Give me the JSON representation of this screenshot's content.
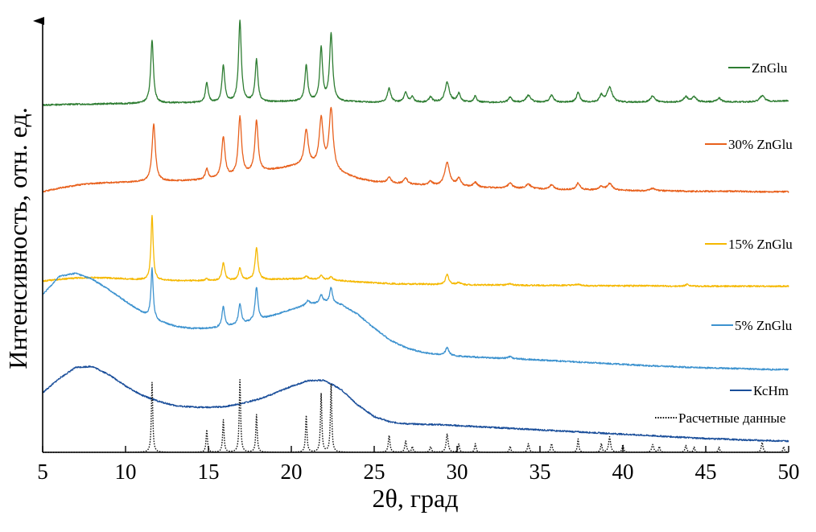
{
  "chart_data": {
    "type": "line",
    "xlabel": "2θ, град",
    "ylabel": "Интенсивность, отн. ед.",
    "xlim": [
      5,
      50
    ],
    "ylim": [
      0,
      100
    ],
    "xticks": [
      5,
      10,
      15,
      20,
      25,
      30,
      35,
      40,
      45,
      50
    ],
    "xtick_labels": [
      "5",
      "10",
      "15",
      "20",
      "25",
      "30",
      "35",
      "40",
      "45",
      "50"
    ],
    "yticks": [],
    "grid": false,
    "legend_position": "right",
    "x": [
      5,
      6,
      7,
      8,
      9,
      10,
      11,
      12,
      13,
      14,
      15,
      16,
      17,
      18,
      19,
      20,
      21,
      22,
      23,
      24,
      25,
      26,
      27,
      28,
      29,
      30,
      31,
      32,
      33,
      34,
      35,
      36,
      37,
      38,
      39,
      40,
      41,
      42,
      43,
      44,
      45,
      46,
      47,
      48,
      49,
      50
    ],
    "series": [
      {
        "name": "ZnGlu",
        "color": "#2e7d32",
        "style": "solid",
        "baseline": [
          80.5,
          80.6,
          80.7,
          80.7,
          80.8,
          80.8,
          80.9,
          80.9,
          81,
          81,
          81,
          81,
          81.1,
          81.1,
          81.2,
          81.3,
          81.3,
          81.3,
          81.2,
          81.2,
          81.1,
          81.1,
          81.1,
          81.1,
          81.1,
          81.1,
          81.1,
          81.1,
          81.1,
          81.1,
          81.1,
          81.1,
          81.1,
          81.1,
          81.1,
          81.1,
          81.1,
          81.1,
          81.1,
          81.2,
          81.2,
          81.2,
          81.2,
          81.2,
          81.3,
          81.5
        ],
        "peaks": [
          [
            11.6,
            14.5,
            0.1
          ],
          [
            14.9,
            4.5,
            0.1
          ],
          [
            15.9,
            8.5,
            0.1
          ],
          [
            16.9,
            18.8,
            0.1
          ],
          [
            17.9,
            9.8,
            0.1
          ],
          [
            20.9,
            8.3,
            0.1
          ],
          [
            21.8,
            12.3,
            0.1
          ],
          [
            22.4,
            15.5,
            0.11
          ],
          [
            25.9,
            3.2,
            0.12
          ],
          [
            26.9,
            2.2,
            0.12
          ],
          [
            27.3,
            1.2,
            0.1
          ],
          [
            28.4,
            1.2,
            0.12
          ],
          [
            29.4,
            4.6,
            0.16
          ],
          [
            30.1,
            2.0,
            0.12
          ],
          [
            31.1,
            1.5,
            0.1
          ],
          [
            33.2,
            1.2,
            0.12
          ],
          [
            34.3,
            1.6,
            0.18
          ],
          [
            35.7,
            1.6,
            0.14
          ],
          [
            37.3,
            2.3,
            0.12
          ],
          [
            38.7,
            1.6,
            0.12
          ],
          [
            39.2,
            3.5,
            0.18
          ],
          [
            41.8,
            1.4,
            0.18
          ],
          [
            43.8,
            1.2,
            0.16
          ],
          [
            44.3,
            1.2,
            0.14
          ],
          [
            45.8,
            0.9,
            0.14
          ],
          [
            48.4,
            1.4,
            0.18
          ]
        ]
      },
      {
        "name": "30% ZnGlu",
        "color": "#e8601c",
        "style": "solid",
        "baseline": [
          60.4,
          61.2,
          61.9,
          62.3,
          62.5,
          62.6,
          62.7,
          62.8,
          62.9,
          63.0,
          63.2,
          63.6,
          64.1,
          64.8,
          65.5,
          66.2,
          66.5,
          66.0,
          64.6,
          63.4,
          62.7,
          62.4,
          62.1,
          61.9,
          61.7,
          61.6,
          61.5,
          61.3,
          61.2,
          61.1,
          61.0,
          60.9,
          60.8,
          60.8,
          60.7,
          60.7,
          60.6,
          60.6,
          60.6,
          60.5,
          60.5,
          60.5,
          60.5,
          60.4,
          60.4,
          60.4
        ],
        "peaks": [
          [
            11.7,
            13.3,
            0.12
          ],
          [
            14.9,
            2.5,
            0.1
          ],
          [
            15.9,
            9.5,
            0.12
          ],
          [
            16.9,
            13.5,
            0.12
          ],
          [
            17.9,
            12.0,
            0.12
          ],
          [
            20.9,
            8.0,
            0.14
          ],
          [
            21.8,
            11.0,
            0.14
          ],
          [
            22.4,
            14.0,
            0.14
          ],
          [
            25.9,
            1.2,
            0.14
          ],
          [
            26.9,
            1.4,
            0.14
          ],
          [
            28.4,
            0.9,
            0.14
          ],
          [
            29.4,
            5.4,
            0.18
          ],
          [
            30.1,
            1.8,
            0.14
          ],
          [
            31.1,
            1.0,
            0.14
          ],
          [
            33.2,
            1.2,
            0.16
          ],
          [
            34.3,
            1.0,
            0.2
          ],
          [
            35.7,
            1.0,
            0.16
          ],
          [
            37.3,
            1.6,
            0.14
          ],
          [
            38.7,
            0.8,
            0.14
          ],
          [
            39.2,
            1.6,
            0.18
          ],
          [
            41.8,
            0.6,
            0.18
          ]
        ]
      },
      {
        "name": "15% ZnGlu",
        "color": "#f5b800",
        "style": "solid",
        "baseline": [
          39.7,
          40.1,
          40.4,
          40.5,
          40.4,
          40.2,
          40.0,
          39.9,
          39.8,
          39.8,
          39.8,
          39.8,
          39.9,
          40.0,
          40.1,
          40.2,
          40.2,
          40.1,
          39.8,
          39.5,
          39.3,
          39.1,
          39.0,
          39.0,
          38.9,
          38.9,
          38.8,
          38.8,
          38.8,
          38.7,
          38.7,
          38.7,
          38.7,
          38.6,
          38.6,
          38.6,
          38.6,
          38.6,
          38.5,
          38.5,
          38.5,
          38.5,
          38.5,
          38.5,
          38.5,
          38.5
        ],
        "peaks": [
          [
            11.6,
            14.9,
            0.08
          ],
          [
            14.9,
            0.4,
            0.1
          ],
          [
            15.9,
            4.2,
            0.1
          ],
          [
            16.9,
            2.8,
            0.1
          ],
          [
            17.9,
            7.5,
            0.1
          ],
          [
            20.9,
            0.6,
            0.12
          ],
          [
            21.8,
            0.8,
            0.1
          ],
          [
            22.4,
            0.8,
            0.1
          ],
          [
            29.4,
            2.3,
            0.12
          ],
          [
            30.1,
            0.5,
            0.12
          ],
          [
            33.2,
            0.3,
            0.12
          ],
          [
            37.3,
            0.3,
            0.12
          ],
          [
            43.9,
            0.5,
            0.12
          ]
        ]
      },
      {
        "name": "5% ZnGlu",
        "color": "#3c92cf",
        "style": "solid",
        "baseline": [
          36.5,
          40.8,
          41.5,
          40.1,
          37.7,
          35.0,
          32.4,
          30.4,
          29.2,
          28.7,
          28.7,
          29.0,
          29.7,
          30.6,
          31.8,
          33.1,
          34.2,
          34.8,
          34.2,
          32.0,
          28.8,
          25.9,
          24.1,
          23.1,
          22.6,
          22.3,
          22.1,
          21.9,
          21.8,
          21.6,
          21.4,
          21.2,
          21.0,
          20.8,
          20.6,
          20.4,
          20.2,
          20.0,
          19.9,
          19.7,
          19.6,
          19.5,
          19.4,
          19.3,
          19.2,
          19.2
        ],
        "peaks": [
          [
            11.6,
            11.5,
            0.08
          ],
          [
            15.9,
            4.8,
            0.1
          ],
          [
            16.9,
            4.8,
            0.1
          ],
          [
            17.9,
            7.8,
            0.1
          ],
          [
            21.0,
            1.0,
            0.12
          ],
          [
            21.8,
            1.8,
            0.1
          ],
          [
            22.4,
            3.6,
            0.1
          ],
          [
            29.4,
            1.8,
            0.12
          ],
          [
            33.2,
            0.4,
            0.12
          ]
        ]
      },
      {
        "name": "КсНm",
        "color": "#1a4e9a",
        "style": "solid",
        "baseline": [
          13.8,
          17.1,
          19.7,
          19.9,
          18.0,
          15.4,
          13.2,
          11.8,
          10.8,
          10.5,
          10.4,
          10.6,
          11.3,
          12.3,
          13.7,
          15.3,
          16.6,
          16.7,
          14.6,
          11.0,
          8.3,
          7.0,
          6.6,
          6.5,
          6.4,
          6.2,
          6.0,
          5.8,
          5.6,
          5.4,
          5.2,
          5.0,
          4.8,
          4.6,
          4.4,
          4.2,
          4.0,
          3.8,
          3.6,
          3.4,
          3.2,
          3.1,
          2.9,
          2.8,
          2.7,
          2.6
        ]
      },
      {
        "name": "Расчетные данные",
        "color": "#111111",
        "style": "dotted",
        "baseline": [
          0,
          0,
          0,
          0,
          0,
          0,
          0,
          0,
          0,
          0,
          0,
          0,
          0,
          0,
          0,
          0,
          0,
          0,
          0,
          0,
          0,
          0,
          0,
          0,
          0,
          0,
          0,
          0,
          0,
          0,
          0,
          0,
          0,
          0,
          0,
          0,
          0,
          0,
          0,
          0,
          0,
          0,
          0,
          0,
          0,
          0
        ],
        "peaks": [
          [
            11.6,
            16.2,
            0.05
          ],
          [
            14.9,
            5.2,
            0.05
          ],
          [
            15.9,
            7.5,
            0.05
          ],
          [
            16.9,
            16.8,
            0.05
          ],
          [
            17.9,
            8.7,
            0.05
          ],
          [
            20.9,
            8.5,
            0.05
          ],
          [
            21.8,
            13.6,
            0.05
          ],
          [
            22.4,
            15.6,
            0.05
          ],
          [
            25.9,
            3.9,
            0.06
          ],
          [
            26.9,
            2.6,
            0.06
          ],
          [
            27.3,
            1.3,
            0.05
          ],
          [
            28.4,
            1.3,
            0.06
          ],
          [
            29.4,
            4.2,
            0.07
          ],
          [
            30.1,
            1.9,
            0.05
          ],
          [
            31.1,
            2.0,
            0.05
          ],
          [
            33.2,
            1.4,
            0.05
          ],
          [
            34.3,
            2.0,
            0.06
          ],
          [
            35.7,
            2.0,
            0.06
          ],
          [
            37.3,
            3.1,
            0.05
          ],
          [
            38.7,
            2.0,
            0.05
          ],
          [
            39.2,
            3.6,
            0.07
          ],
          [
            40.0,
            1.8,
            0.05
          ],
          [
            41.8,
            1.8,
            0.07
          ],
          [
            42.2,
            1.3,
            0.05
          ],
          [
            43.8,
            1.6,
            0.06
          ],
          [
            44.3,
            1.2,
            0.05
          ],
          [
            45.8,
            1.2,
            0.05
          ],
          [
            48.4,
            2.3,
            0.06
          ],
          [
            49.7,
            1.3,
            0.05
          ]
        ]
      }
    ]
  }
}
